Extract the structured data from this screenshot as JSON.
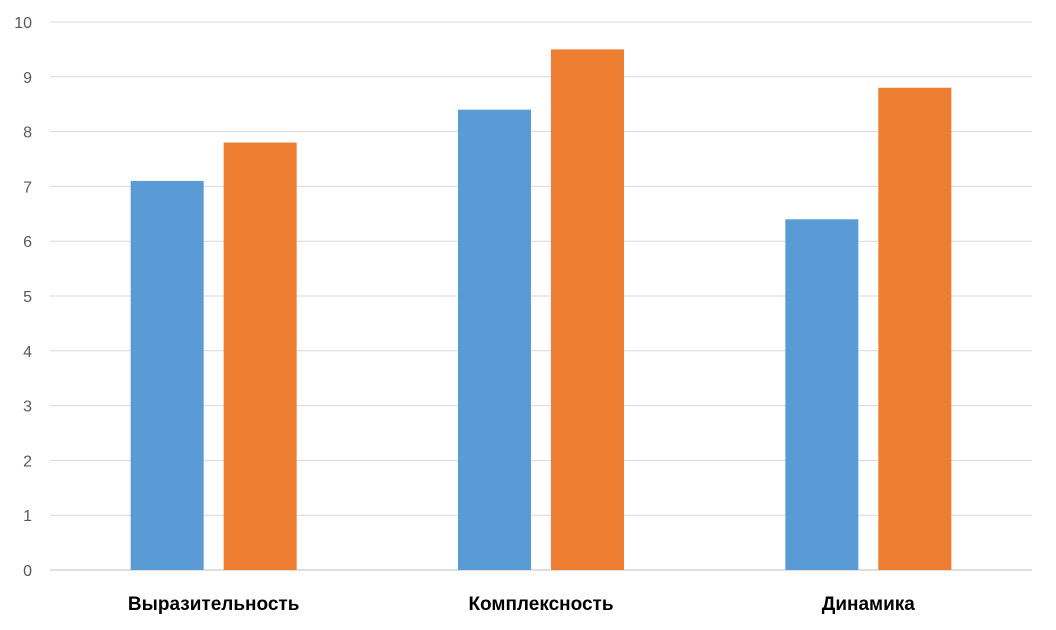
{
  "chart_data": {
    "type": "bar",
    "categories": [
      "Выразительность",
      "Комплексность",
      "Динамика"
    ],
    "series": [
      {
        "values": [
          7.1,
          8.4,
          6.4
        ],
        "color": "#5b9bd5"
      },
      {
        "values": [
          7.8,
          9.5,
          8.8
        ],
        "color": "#ed7d31"
      }
    ],
    "title": "",
    "xlabel": "",
    "ylabel": "",
    "ylim": [
      0,
      10
    ],
    "yticks": [
      0,
      1,
      2,
      3,
      4,
      5,
      6,
      7,
      8,
      9,
      10
    ],
    "grid": true,
    "legend": "none"
  }
}
